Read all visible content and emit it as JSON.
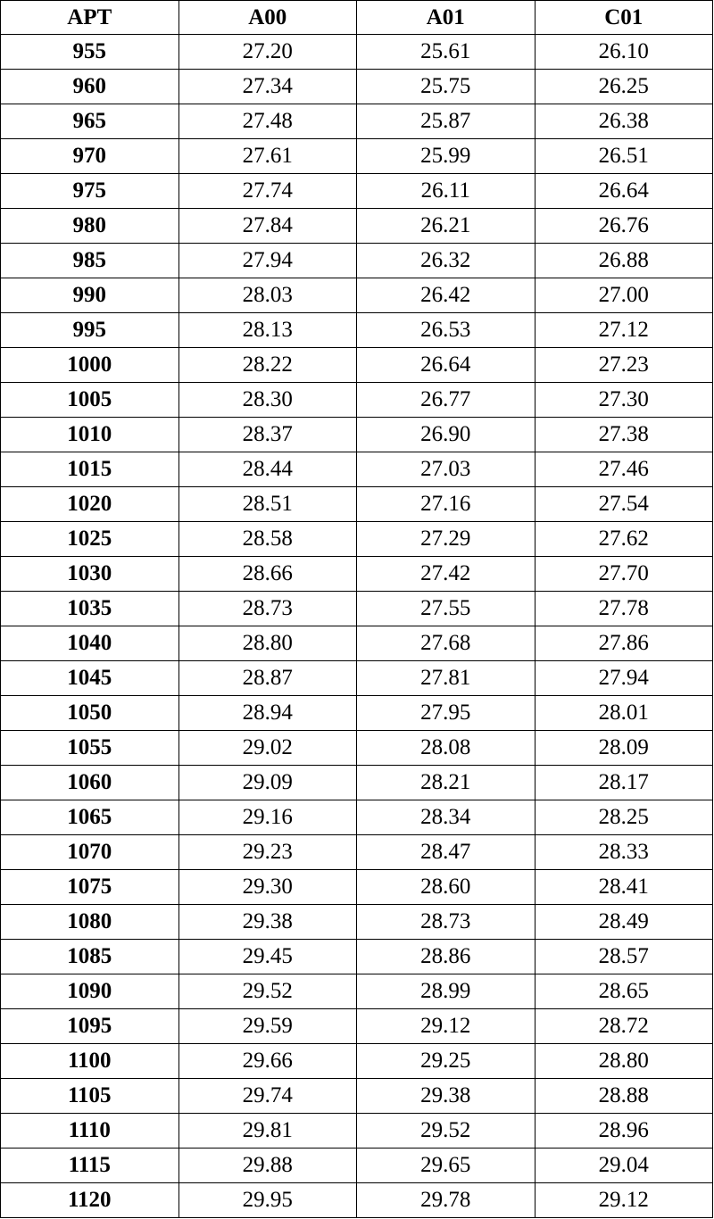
{
  "table": {
    "header": [
      "APT",
      "A00",
      "A01",
      "C01"
    ],
    "rows": [
      [
        "955",
        "27.20",
        "25.61",
        "26.10"
      ],
      [
        "960",
        "27.34",
        "25.75",
        "26.25"
      ],
      [
        "965",
        "27.48",
        "25.87",
        "26.38"
      ],
      [
        "970",
        "27.61",
        "25.99",
        "26.51"
      ],
      [
        "975",
        "27.74",
        "26.11",
        "26.64"
      ],
      [
        "980",
        "27.84",
        "26.21",
        "26.76"
      ],
      [
        "985",
        "27.94",
        "26.32",
        "26.88"
      ],
      [
        "990",
        "28.03",
        "26.42",
        "27.00"
      ],
      [
        "995",
        "28.13",
        "26.53",
        "27.12"
      ],
      [
        "1000",
        "28.22",
        "26.64",
        "27.23"
      ],
      [
        "1005",
        "28.30",
        "26.77",
        "27.30"
      ],
      [
        "1010",
        "28.37",
        "26.90",
        "27.38"
      ],
      [
        "1015",
        "28.44",
        "27.03",
        "27.46"
      ],
      [
        "1020",
        "28.51",
        "27.16",
        "27.54"
      ],
      [
        "1025",
        "28.58",
        "27.29",
        "27.62"
      ],
      [
        "1030",
        "28.66",
        "27.42",
        "27.70"
      ],
      [
        "1035",
        "28.73",
        "27.55",
        "27.78"
      ],
      [
        "1040",
        "28.80",
        "27.68",
        "27.86"
      ],
      [
        "1045",
        "28.87",
        "27.81",
        "27.94"
      ],
      [
        "1050",
        "28.94",
        "27.95",
        "28.01"
      ],
      [
        "1055",
        "29.02",
        "28.08",
        "28.09"
      ],
      [
        "1060",
        "29.09",
        "28.21",
        "28.17"
      ],
      [
        "1065",
        "29.16",
        "28.34",
        "28.25"
      ],
      [
        "1070",
        "29.23",
        "28.47",
        "28.33"
      ],
      [
        "1075",
        "29.30",
        "28.60",
        "28.41"
      ],
      [
        "1080",
        "29.38",
        "28.73",
        "28.49"
      ],
      [
        "1085",
        "29.45",
        "28.86",
        "28.57"
      ],
      [
        "1090",
        "29.52",
        "28.99",
        "28.65"
      ],
      [
        "1095",
        "29.59",
        "29.12",
        "28.72"
      ],
      [
        "1100",
        "29.66",
        "29.25",
        "28.80"
      ],
      [
        "1105",
        "29.74",
        "29.38",
        "28.88"
      ],
      [
        "1110",
        "29.81",
        "29.52",
        "28.96"
      ],
      [
        "1115",
        "29.88",
        "29.65",
        "29.04"
      ],
      [
        "1120",
        "29.95",
        "29.78",
        "29.12"
      ]
    ]
  }
}
